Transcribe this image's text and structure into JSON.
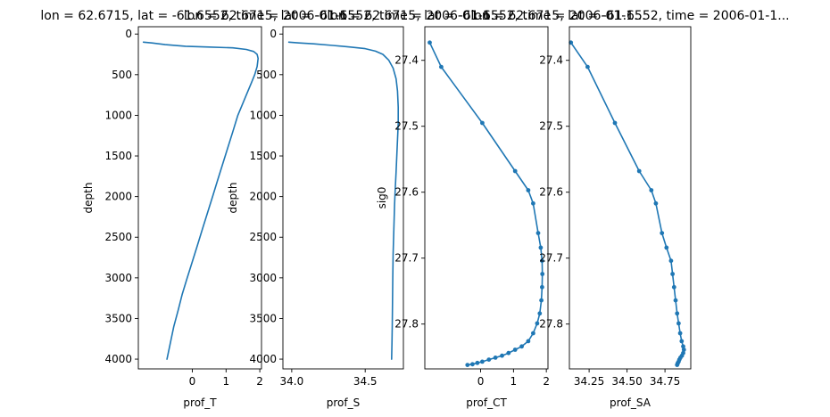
{
  "figure": {
    "background": "#ffffff",
    "line_color": "#1f77b4"
  },
  "chart_data": [
    {
      "type": "line",
      "title": "lon = 62.6715, lat = -61.6552, time = 2006-01-1...",
      "xlabel": "prof_T",
      "ylabel": "depth",
      "xlim": [
        -1.6,
        2.05
      ],
      "ylim": [
        4120,
        -90
      ],
      "y_inverted": true,
      "xticks": [
        0,
        1,
        2
      ],
      "xtick_labels": [
        "0",
        "1",
        "2"
      ],
      "yticks": [
        0,
        500,
        1000,
        1500,
        2000,
        2500,
        3000,
        3500,
        4000
      ],
      "ytick_labels": [
        "0",
        "500",
        "1000",
        "1500",
        "2000",
        "2500",
        "3000",
        "3500",
        "4000"
      ],
      "markers": false,
      "series": [
        {
          "x": [
            -1.45,
            -1.2,
            -0.8,
            -0.2,
            0.5,
            1.2,
            1.6,
            1.82,
            1.92,
            1.95,
            1.92,
            1.85,
            1.75,
            1.6,
            1.45,
            1.35,
            1.2,
            1.05,
            0.9,
            0.75,
            0.6,
            0.45,
            0.3,
            0.15,
            0.0,
            -0.15,
            -0.3,
            -0.42,
            -0.55,
            -0.65,
            -0.75
          ],
          "y": [
            100,
            110,
            130,
            150,
            160,
            170,
            190,
            215,
            250,
            300,
            400,
            500,
            600,
            750,
            900,
            1000,
            1200,
            1400,
            1600,
            1800,
            2000,
            2200,
            2400,
            2600,
            2800,
            3000,
            3200,
            3400,
            3600,
            3800,
            4000
          ]
        }
      ]
    },
    {
      "type": "line",
      "title": "lon = 62.6715, lat = -61.6552, time = 2006-01-1...",
      "xlabel": "prof_S",
      "ylabel": "depth",
      "xlim": [
        33.94,
        34.76
      ],
      "ylim": [
        4120,
        -90
      ],
      "y_inverted": true,
      "xticks": [
        34.0,
        34.5
      ],
      "xtick_labels": [
        "34.0",
        "34.5"
      ],
      "yticks": [
        0,
        500,
        1000,
        1500,
        2000,
        2500,
        3000,
        3500,
        4000
      ],
      "ytick_labels": [
        "0",
        "500",
        "1000",
        "1500",
        "2000",
        "2500",
        "3000",
        "3500",
        "4000"
      ],
      "markers": false,
      "series": [
        {
          "x": [
            33.98,
            34.05,
            34.15,
            34.28,
            34.4,
            34.5,
            34.57,
            34.62,
            34.66,
            34.69,
            34.71,
            34.72,
            34.725,
            34.725,
            34.72,
            34.715,
            34.71,
            34.705,
            34.7,
            34.695,
            34.69,
            34.688,
            34.686,
            34.684,
            34.682,
            34.68
          ],
          "y": [
            100,
            110,
            120,
            140,
            160,
            180,
            210,
            250,
            320,
            420,
            550,
            700,
            900,
            1100,
            1300,
            1500,
            1700,
            1900,
            2100,
            2400,
            2700,
            3000,
            3300,
            3600,
            3800,
            4000
          ]
        }
      ]
    },
    {
      "type": "line",
      "title": "lon = 62.6715, lat = -61.6552, time = 2006-01-1...",
      "xlabel": "prof_CT",
      "ylabel": "sig0",
      "xlim": [
        -1.7,
        2.05
      ],
      "ylim": [
        27.868,
        27.349
      ],
      "y_inverted": true,
      "xticks": [
        0,
        1,
        2
      ],
      "xtick_labels": [
        "0",
        "1",
        "2"
      ],
      "yticks": [
        27.4,
        27.5,
        27.6,
        27.7,
        27.8
      ],
      "ytick_labels": [
        "27.4",
        "27.5",
        "27.6",
        "27.7",
        "27.8"
      ],
      "markers": true,
      "series": [
        {
          "x": [
            -1.55,
            -1.2,
            0.05,
            1.05,
            1.45,
            1.6,
            1.75,
            1.83,
            1.87,
            1.88,
            1.87,
            1.85,
            1.8,
            1.72,
            1.6,
            1.45,
            1.25,
            1.05,
            0.85,
            0.65,
            0.45,
            0.25,
            0.05,
            -0.1,
            -0.25,
            -0.4
          ],
          "y": [
            27.373,
            27.41,
            27.495,
            27.568,
            27.597,
            27.617,
            27.662,
            27.684,
            27.704,
            27.724,
            27.744,
            27.764,
            27.784,
            27.799,
            27.814,
            27.826,
            27.834,
            27.839,
            27.844,
            27.848,
            27.851,
            27.854,
            27.857,
            27.859,
            27.861,
            27.862
          ]
        }
      ]
    },
    {
      "type": "line",
      "title": "lon = 62.6715, lat = -61.6552, time = 2006-01-1...",
      "xlabel": "prof_SA",
      "ylabel": "",
      "xlim": [
        34.12,
        34.92
      ],
      "ylim": [
        27.868,
        27.349
      ],
      "y_inverted": true,
      "xticks": [
        34.25,
        34.5,
        34.75
      ],
      "xtick_labels": [
        "34.25",
        "34.50",
        "34.75"
      ],
      "yticks": [
        27.4,
        27.5,
        27.6,
        27.7,
        27.8
      ],
      "ytick_labels": [
        "27.4",
        "27.5",
        "27.6",
        "27.7",
        "27.8"
      ],
      "markers": true,
      "series": [
        {
          "x": [
            34.13,
            34.24,
            34.42,
            34.58,
            34.66,
            34.69,
            34.73,
            34.76,
            34.79,
            34.8,
            34.81,
            34.82,
            34.83,
            34.84,
            34.85,
            34.86,
            34.87,
            34.875,
            34.87,
            34.862,
            34.852,
            34.845,
            34.84,
            34.835,
            34.832,
            34.83
          ],
          "y": [
            27.373,
            27.41,
            27.495,
            27.568,
            27.597,
            27.617,
            27.662,
            27.684,
            27.704,
            27.724,
            27.744,
            27.764,
            27.784,
            27.799,
            27.814,
            27.826,
            27.834,
            27.839,
            27.844,
            27.848,
            27.851,
            27.854,
            27.857,
            27.859,
            27.861,
            27.862
          ]
        }
      ]
    }
  ]
}
